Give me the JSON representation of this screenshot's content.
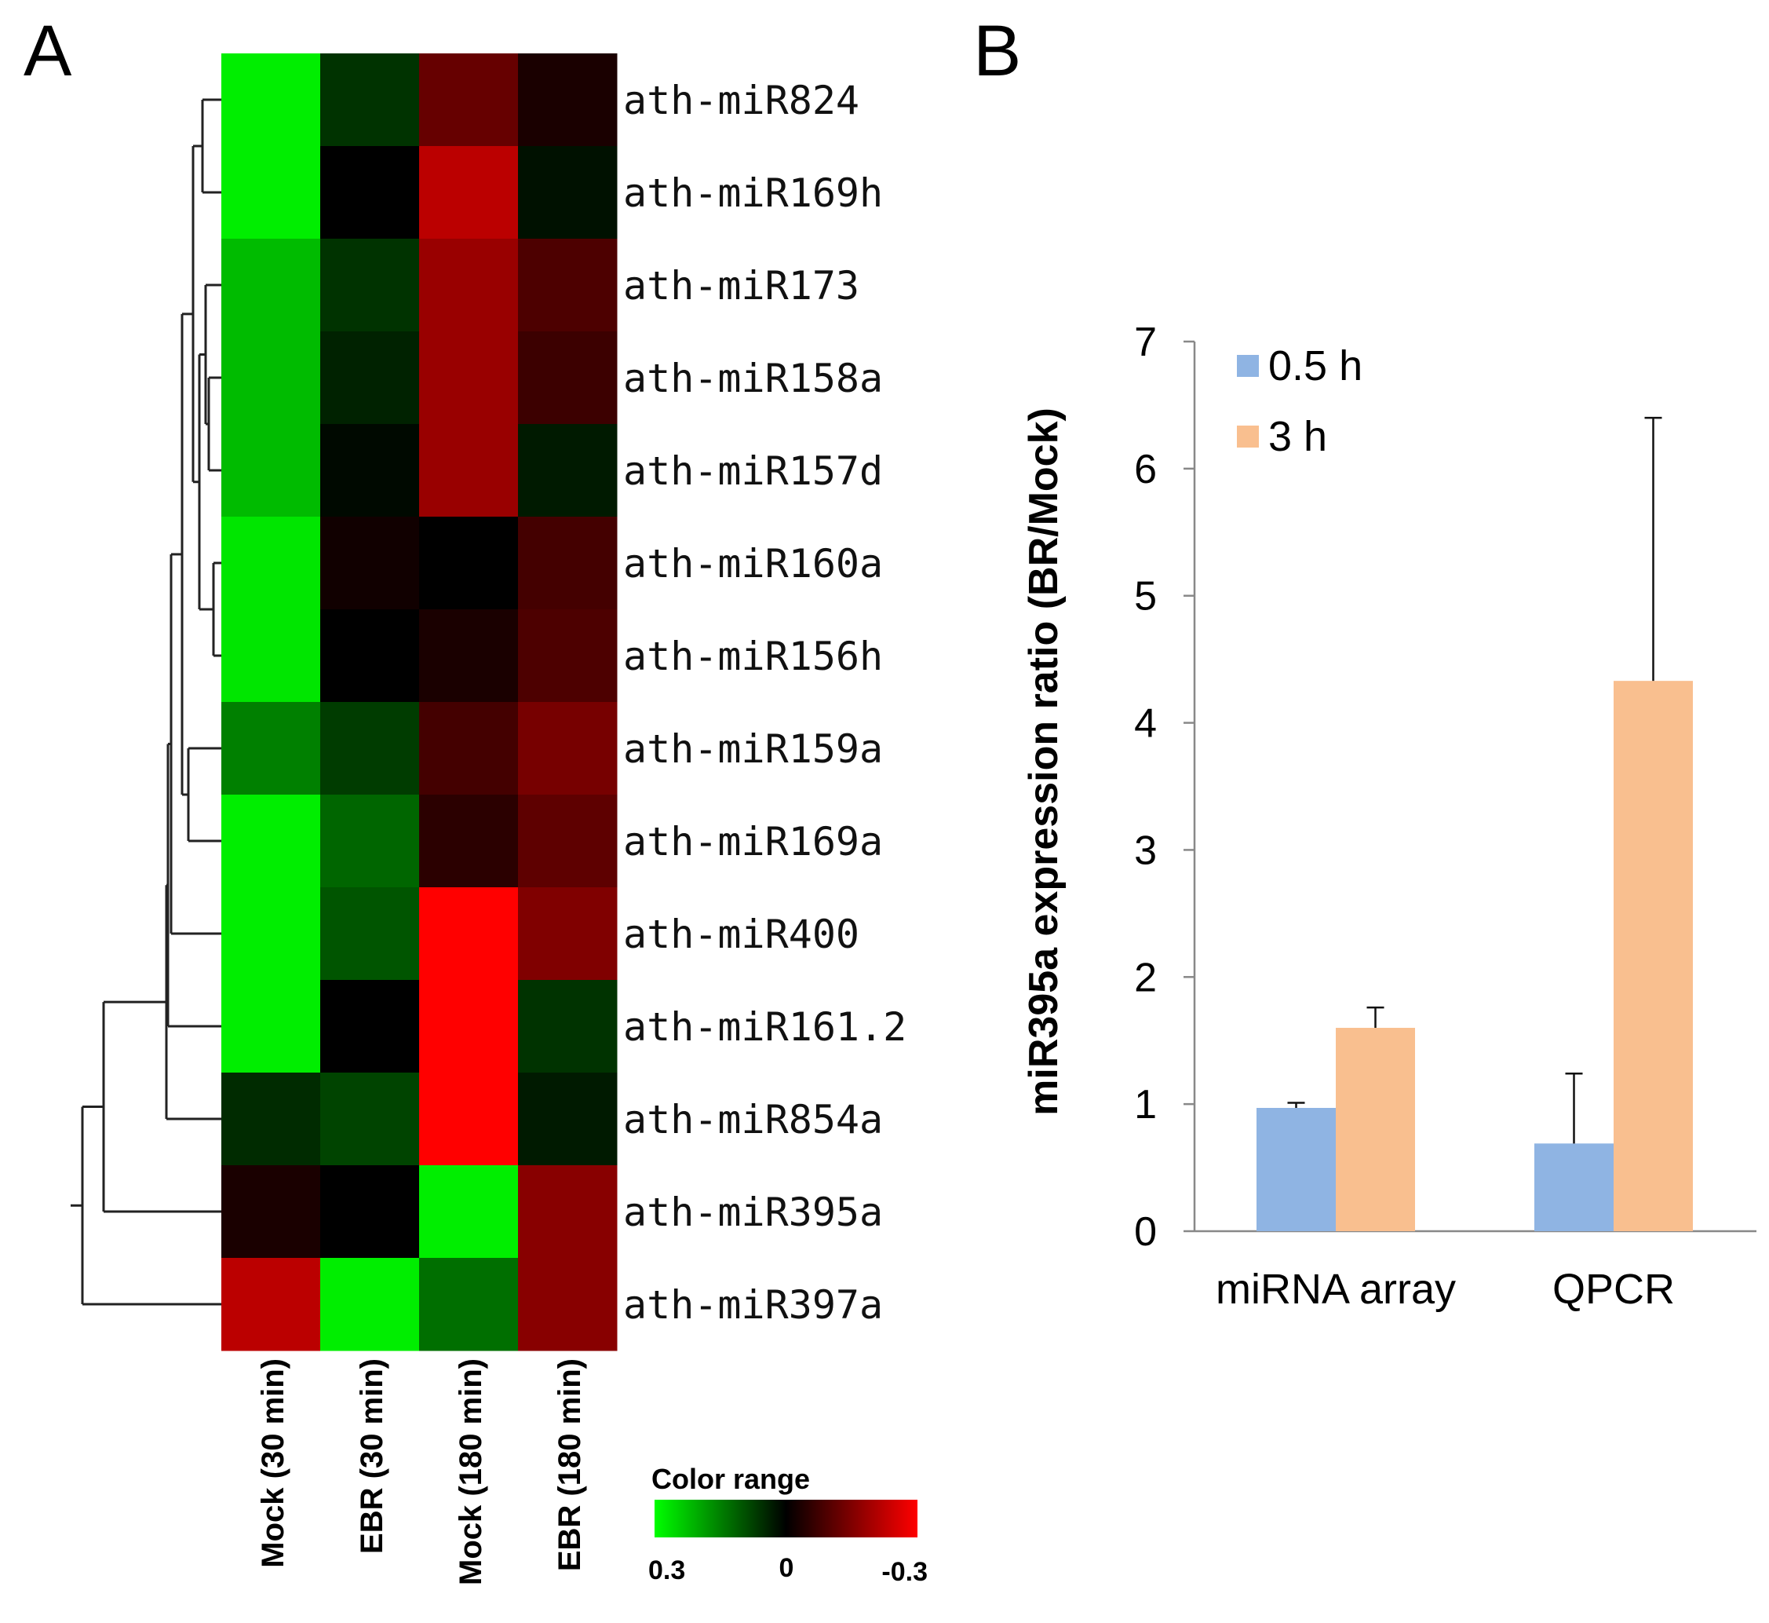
{
  "panel_labels": {
    "a": "A",
    "b": "B"
  },
  "chart_data": [
    {
      "type": "heatmap",
      "title": "",
      "rows": [
        "ath-miR824",
        "ath-miR169h",
        "ath-miR173",
        "ath-miR158a",
        "ath-miR157d",
        "ath-miR160a",
        "ath-miR156h",
        "ath-miR159a",
        "ath-miR169a",
        "ath-miR400",
        "ath-miR161.2",
        "ath-miR854a",
        "ath-miR395a",
        "ath-miR397a"
      ],
      "columns": [
        "Mock (30 min)",
        "EBR (30 min)",
        "Mock (180 min)",
        "EBR (180 min)"
      ],
      "values": [
        [
          0.28,
          0.06,
          -0.12,
          -0.03
        ],
        [
          0.28,
          0.0,
          -0.22,
          0.02
        ],
        [
          0.22,
          0.06,
          -0.18,
          -0.09
        ],
        [
          0.22,
          0.04,
          -0.18,
          -0.07
        ],
        [
          0.22,
          0.01,
          -0.18,
          0.03
        ],
        [
          0.27,
          -0.02,
          0.0,
          -0.08
        ],
        [
          0.27,
          0.0,
          -0.03,
          -0.09
        ],
        [
          0.15,
          0.07,
          -0.08,
          -0.14
        ],
        [
          0.28,
          0.12,
          -0.05,
          -0.11
        ],
        [
          0.28,
          0.1,
          -0.3,
          -0.15
        ],
        [
          0.28,
          0.0,
          -0.3,
          0.06
        ],
        [
          0.05,
          0.08,
          -0.3,
          0.03
        ],
        [
          -0.03,
          0.0,
          0.28,
          -0.16
        ],
        [
          -0.22,
          0.28,
          0.13,
          -0.16
        ]
      ],
      "color_scale": {
        "title": "Color range",
        "tick_labels": [
          "0.3",
          "0",
          "-0.3"
        ],
        "min": -0.3,
        "max": 0.3,
        "high_color": "#00ff00",
        "mid_color": "#000000",
        "low_color": "#ff0000"
      },
      "row_dendrogram": true
    },
    {
      "type": "bar",
      "categories": [
        "miRNA array",
        "QPCR"
      ],
      "series": [
        {
          "name": "0.5 h",
          "values": [
            0.97,
            0.69
          ],
          "errors": [
            0.04,
            0.55
          ],
          "color": "#8fb4e3"
        },
        {
          "name": "3 h",
          "values": [
            1.6,
            4.33
          ],
          "errors": [
            0.16,
            2.07
          ],
          "color": "#f9bf8f"
        }
      ],
      "title": "",
      "xlabel": "",
      "ylabel": "miR395a expression ratio (BR/Mock)",
      "ylim": [
        0,
        7
      ],
      "yticks": [
        "0",
        "1",
        "2",
        "3",
        "4",
        "5",
        "6",
        "7"
      ],
      "grid": false,
      "legend": "top-left"
    }
  ]
}
